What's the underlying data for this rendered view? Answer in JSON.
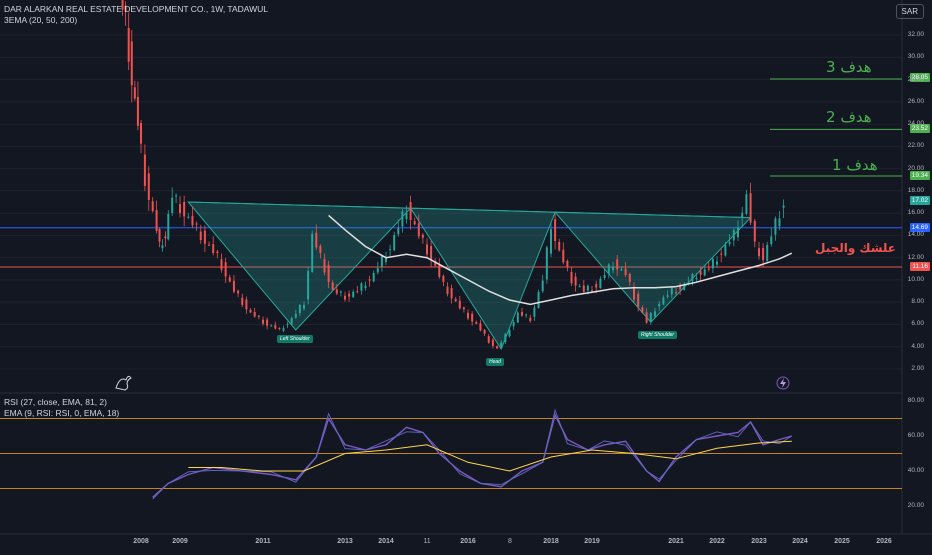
{
  "header": {
    "title": "DAR ALARKAN REAL ESTATE DEVELOPMENT CO., 1W, TADAWUL",
    "indicator": "3EMA (20, 50, 200)",
    "currency": "SAR"
  },
  "rsi_panel": {
    "title1": "RSI (27, close, EMA, 81, 2)",
    "title2": "EMA (9, RSI: RSI, 0, EMA, 18)"
  },
  "annotations": {
    "target1": "هدف 1",
    "target2": "هدف 2",
    "target3": "هدف 3",
    "support": "علشك والجبل",
    "left_shoulder": "Left Shoulder",
    "head": "Head",
    "right_shoulder": "Right Shoulder"
  },
  "price_tags": {
    "t3": "28.05",
    "t2": "23.52",
    "t1": "19.34",
    "current": "17.02",
    "neckline": "14.69",
    "support": "11.16"
  },
  "colors": {
    "background": "#131722",
    "target": "#4caf50",
    "support": "#ef5350",
    "neckline": "#2962ff",
    "pattern": "#26a69a",
    "ema200": "#e0e0e0",
    "rsi": "#7e57c2",
    "rsi_band": "#ffa726"
  },
  "chart_data": [
    {
      "type": "candlestick",
      "title": "DAR ALARKAN REAL ESTATE DEVELOPMENT CO., 1W, TADAWUL",
      "y_ticks": [
        "32.00",
        "30.00",
        "28.00",
        "26.00",
        "24.00",
        "22.00",
        "20.00",
        "18.00",
        "16.00",
        "14.00",
        "12.00",
        "10.00",
        "8.00",
        "6.00",
        "4.00",
        "2.00"
      ],
      "x_ticks": [
        "2008",
        "2009",
        "2011",
        "2013",
        "2014",
        "11",
        "2016",
        "8",
        "2018",
        "2019",
        "2021",
        "2022",
        "2023",
        "2024",
        "2025",
        "2026"
      ],
      "ylim": [
        1.2,
        36
      ],
      "horizontal_lines": [
        {
          "label": "هدف 3",
          "value": 28.05
        },
        {
          "label": "هدف 2",
          "value": 23.52
        },
        {
          "label": "هدف 1",
          "value": 19.34
        },
        {
          "label": "علشك والجبل",
          "value": 11.16
        },
        {
          "value": 14.69
        }
      ],
      "last_price": 17.02,
      "pattern": {
        "name": "inverse head and shoulders",
        "left_shoulder": {
          "x": 2011.8,
          "y": 5.5
        },
        "head": {
          "x": 2016.8,
          "y": 3.8
        },
        "right_shoulder": {
          "x": 2020.4,
          "y": 6.2
        },
        "neckline": [
          {
            "x": 2009.2,
            "y": 17.0
          },
          {
            "x": 2022.8,
            "y": 15.6
          }
        ]
      },
      "price_path": [
        [
          2007.55,
          36
        ],
        [
          2007.7,
          33
        ],
        [
          2007.85,
          28
        ],
        [
          2008.0,
          24
        ],
        [
          2008.2,
          19
        ],
        [
          2008.4,
          16
        ],
        [
          2008.55,
          13
        ],
        [
          2008.7,
          14
        ],
        [
          2008.9,
          17.5
        ],
        [
          2009.2,
          16
        ],
        [
          2009.6,
          14
        ],
        [
          2010.0,
          12
        ],
        [
          2010.4,
          9
        ],
        [
          2010.8,
          7
        ],
        [
          2011.2,
          6
        ],
        [
          2011.5,
          5.5
        ],
        [
          2011.8,
          6.5
        ],
        [
          2012.1,
          8
        ],
        [
          2012.3,
          14
        ],
        [
          2012.5,
          12
        ],
        [
          2012.8,
          9
        ],
        [
          2013.1,
          8.5
        ],
        [
          2013.4,
          9
        ],
        [
          2013.8,
          10.5
        ],
        [
          2014.2,
          13
        ],
        [
          2014.6,
          16.5
        ],
        [
          2014.9,
          14
        ],
        [
          2015.2,
          12
        ],
        [
          2015.5,
          9.5
        ],
        [
          2015.9,
          7.5
        ],
        [
          2016.3,
          6
        ],
        [
          2016.6,
          4.5
        ],
        [
          2016.8,
          3.8
        ],
        [
          2017.0,
          5
        ],
        [
          2017.3,
          7
        ],
        [
          2017.6,
          6.5
        ],
        [
          2017.9,
          10
        ],
        [
          2018.1,
          15
        ],
        [
          2018.3,
          12.5
        ],
        [
          2018.6,
          10
        ],
        [
          2018.9,
          9
        ],
        [
          2019.2,
          9.5
        ],
        [
          2019.6,
          11.5
        ],
        [
          2019.9,
          10.5
        ],
        [
          2020.1,
          8.5
        ],
        [
          2020.4,
          6.2
        ],
        [
          2020.7,
          8
        ],
        [
          2021.0,
          9
        ],
        [
          2021.3,
          9.5
        ],
        [
          2021.6,
          10.5
        ],
        [
          2021.9,
          11
        ],
        [
          2022.2,
          12.5
        ],
        [
          2022.5,
          14
        ],
        [
          2022.8,
          17.5
        ],
        [
          2023.0,
          13
        ],
        [
          2023.2,
          12
        ],
        [
          2023.5,
          15
        ],
        [
          2023.7,
          17
        ]
      ],
      "ema200_path": [
        [
          2012.6,
          15.8
        ],
        [
          2013.0,
          14.5
        ],
        [
          2013.5,
          13
        ],
        [
          2014.0,
          12
        ],
        [
          2014.5,
          12.3
        ],
        [
          2015.0,
          12
        ],
        [
          2015.5,
          11
        ],
        [
          2016.0,
          10
        ],
        [
          2016.5,
          9
        ],
        [
          2017.0,
          8.2
        ],
        [
          2017.5,
          7.8
        ],
        [
          2018.0,
          8.2
        ],
        [
          2018.5,
          8.6
        ],
        [
          2019.0,
          8.9
        ],
        [
          2019.5,
          9.2
        ],
        [
          2020.0,
          9.3
        ],
        [
          2020.5,
          9.3
        ],
        [
          2021.0,
          9.4
        ],
        [
          2021.5,
          9.8
        ],
        [
          2022.0,
          10.3
        ],
        [
          2022.5,
          10.8
        ],
        [
          2023.0,
          11.3
        ],
        [
          2023.5,
          11.9
        ],
        [
          2023.8,
          12.4
        ]
      ]
    },
    {
      "type": "line",
      "title": "RSI (27, close, EMA, 81, 2)",
      "y_ticks": [
        "80.00",
        "60.00",
        "40.00",
        "20.00"
      ],
      "ylim": [
        15,
        82
      ],
      "bands": [
        70,
        50,
        30
      ],
      "series": [
        {
          "name": "RSI",
          "points": [
            [
              2008.3,
              25
            ],
            [
              2008.7,
              33
            ],
            [
              2009.2,
              38
            ],
            [
              2009.8,
              42
            ],
            [
              2010.5,
              40
            ],
            [
              2011.2,
              38
            ],
            [
              2011.8,
              35
            ],
            [
              2012.3,
              48
            ],
            [
              2012.6,
              70
            ],
            [
              2013.0,
              55
            ],
            [
              2013.5,
              52
            ],
            [
              2014.0,
              55
            ],
            [
              2014.5,
              65
            ],
            [
              2014.9,
              62
            ],
            [
              2015.3,
              50
            ],
            [
              2015.8,
              40
            ],
            [
              2016.3,
              33
            ],
            [
              2016.8,
              31
            ],
            [
              2017.3,
              40
            ],
            [
              2017.8,
              45
            ],
            [
              2018.1,
              72
            ],
            [
              2018.4,
              58
            ],
            [
              2018.9,
              52
            ],
            [
              2019.3,
              55
            ],
            [
              2019.8,
              57
            ],
            [
              2020.3,
              40
            ],
            [
              2020.6,
              34
            ],
            [
              2021.0,
              48
            ],
            [
              2021.5,
              58
            ],
            [
              2022.0,
              60
            ],
            [
              2022.5,
              62
            ],
            [
              2022.8,
              68
            ],
            [
              2023.1,
              55
            ],
            [
              2023.5,
              58
            ],
            [
              2023.8,
              60
            ]
          ]
        },
        {
          "name": "EMA",
          "points": [
            [
              2009.2,
              42
            ],
            [
              2010.0,
              42
            ],
            [
              2011.0,
              40
            ],
            [
              2012.0,
              40
            ],
            [
              2013.0,
              50
            ],
            [
              2014.0,
              52
            ],
            [
              2015.0,
              55
            ],
            [
              2016.0,
              45
            ],
            [
              2017.0,
              40
            ],
            [
              2018.0,
              48
            ],
            [
              2019.0,
              52
            ],
            [
              2020.0,
              50
            ],
            [
              2021.0,
              47
            ],
            [
              2022.0,
              53
            ],
            [
              2023.0,
              56
            ],
            [
              2023.8,
              57
            ]
          ]
        }
      ]
    }
  ]
}
